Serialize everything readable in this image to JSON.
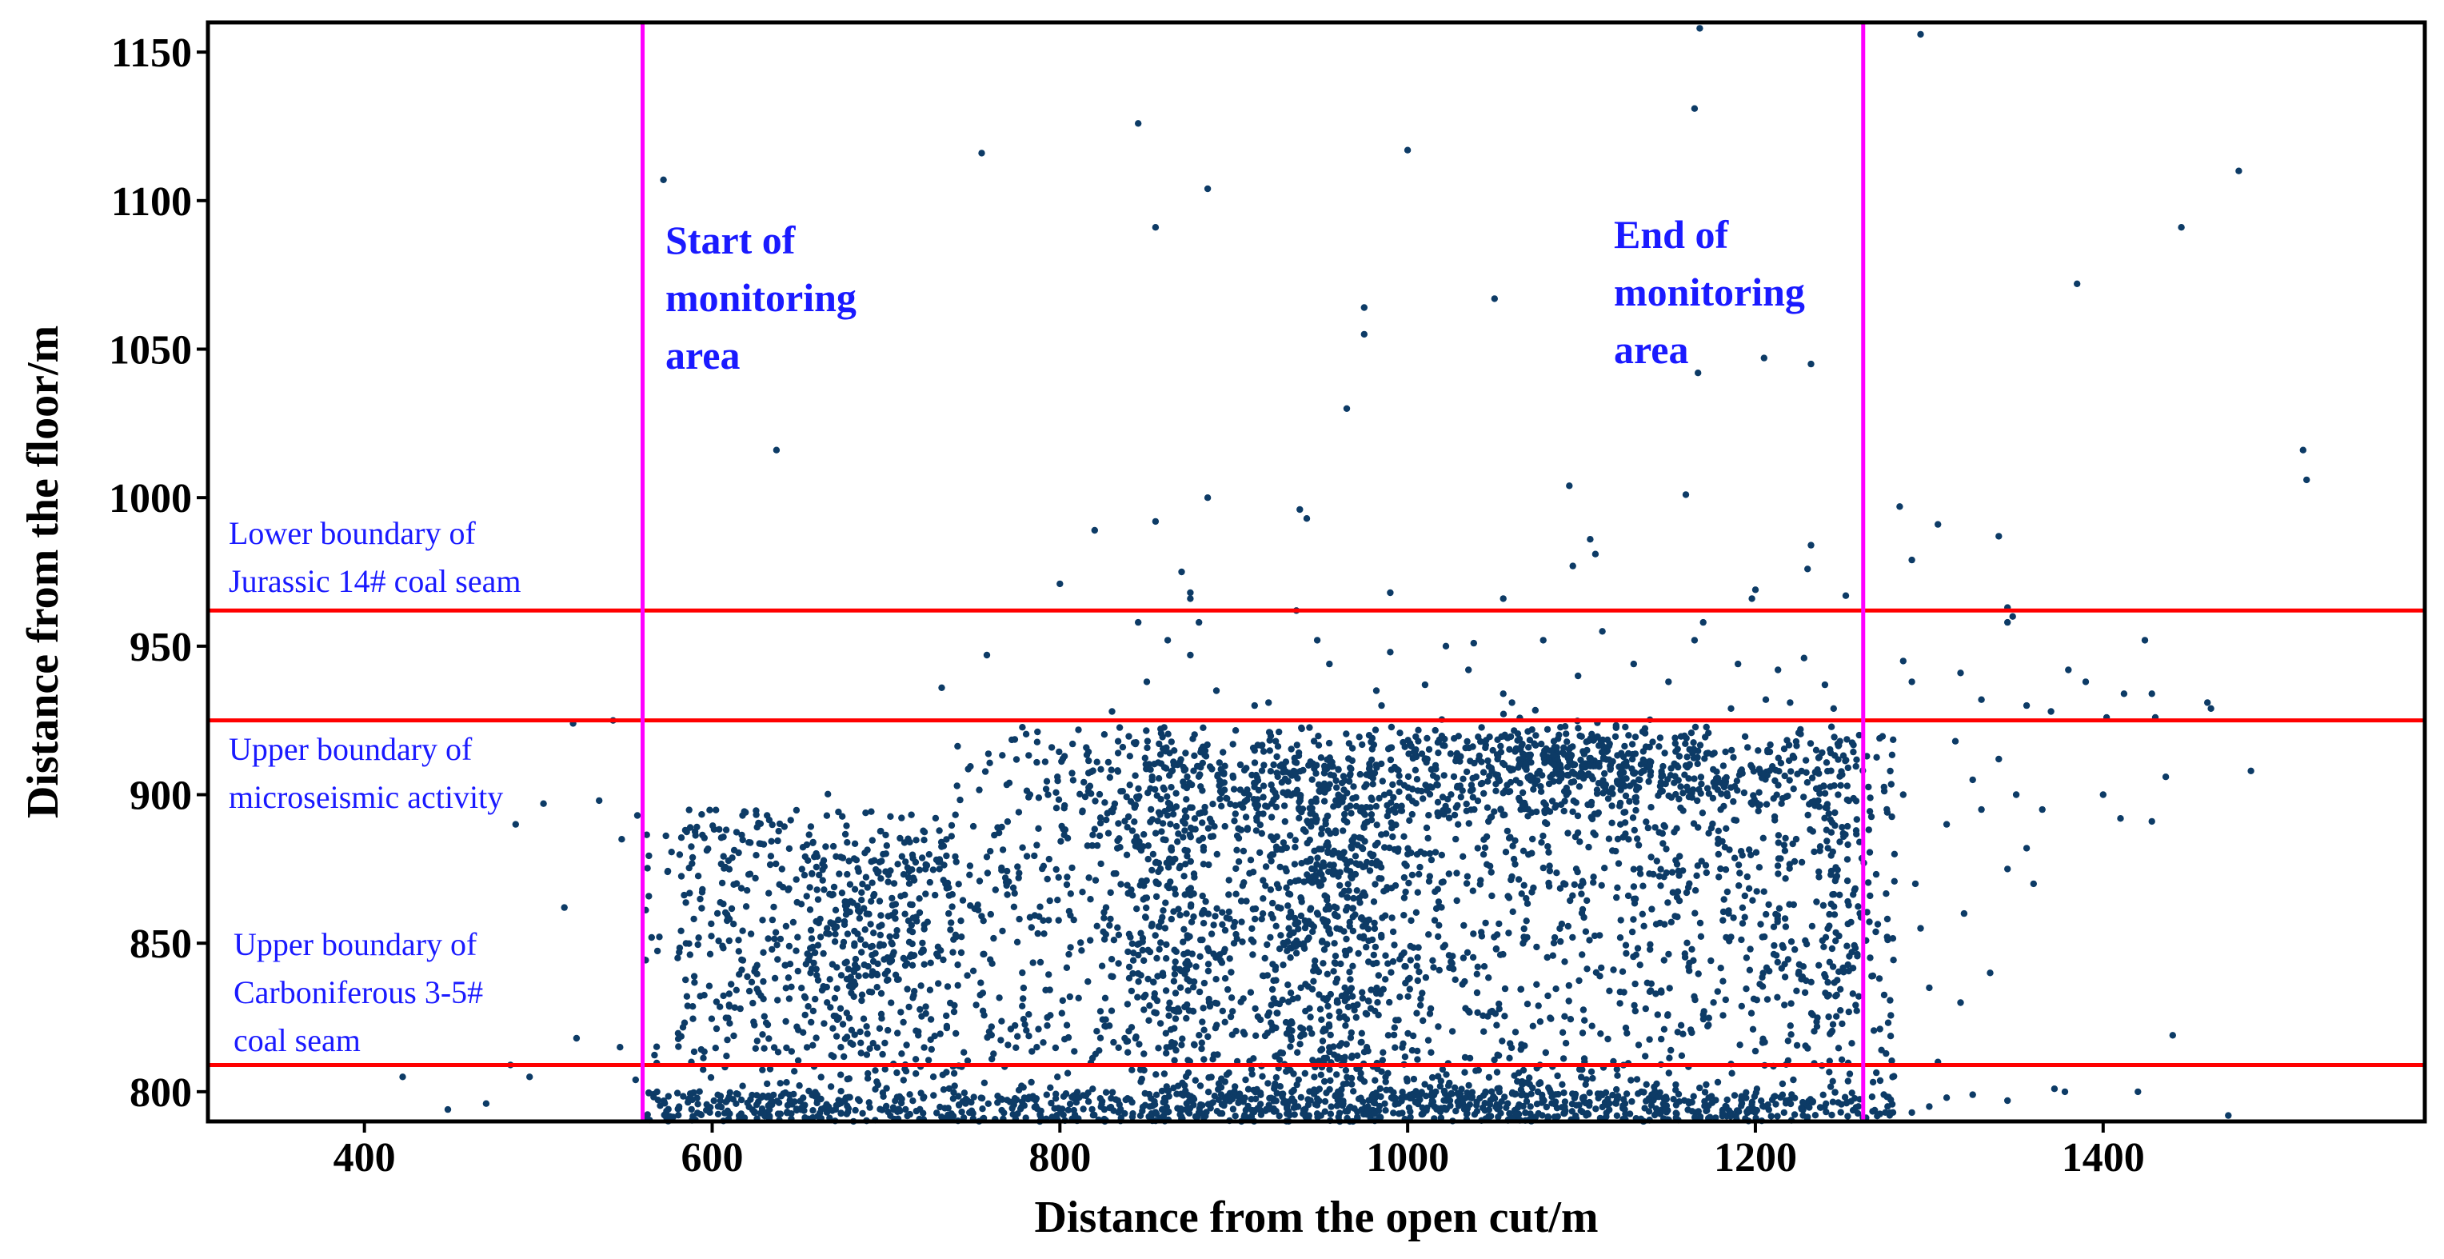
{
  "chart_data": {
    "type": "scatter",
    "xlabel": "Distance from the open cut/m",
    "ylabel": "Distance from the floor/m",
    "xlim": [
      310,
      1585
    ],
    "ylim": [
      790,
      1160
    ],
    "x_ticks": [
      400,
      600,
      800,
      1000,
      1200,
      1400
    ],
    "y_ticks": [
      800,
      850,
      900,
      950,
      1000,
      1050,
      1100,
      1150
    ],
    "point_color": "#0d3b66",
    "vertical_lines": [
      {
        "x": 560,
        "color": "#ff00ff",
        "label": [
          "Start of",
          "monitoring",
          "area"
        ]
      },
      {
        "x": 1262,
        "color": "#ff00ff",
        "label": [
          "End of",
          "monitoring",
          "area"
        ]
      }
    ],
    "horizontal_lines": [
      {
        "y": 962,
        "color": "#ff0000",
        "label": [
          "Lower boundary of",
          "Jurassic 14# coal seam"
        ]
      },
      {
        "y": 925,
        "color": "#ff0000",
        "label": [
          "Upper boundary of",
          "microseismic activity"
        ]
      },
      {
        "y": 809,
        "color": "#ff0000",
        "label": [
          "Upper boundary of",
          "Carboniferous 3-5#",
          "coal seam"
        ]
      }
    ],
    "sparse_points": [
      [
        572,
        1107
      ],
      [
        637,
        1016
      ],
      [
        755,
        1116
      ],
      [
        845,
        1126
      ],
      [
        855,
        1091
      ],
      [
        885,
        1104
      ],
      [
        975,
        1064
      ],
      [
        975,
        1055
      ],
      [
        965,
        1030
      ],
      [
        1000,
        1117
      ],
      [
        1050,
        1067
      ],
      [
        1093,
        1004
      ],
      [
        1160,
        1001
      ],
      [
        1165,
        1131
      ],
      [
        1168,
        1158
      ],
      [
        1205,
        1047
      ],
      [
        1232,
        1045
      ],
      [
        1295,
        1156
      ],
      [
        1385,
        1072
      ],
      [
        1445,
        1091
      ],
      [
        1478,
        1110
      ],
      [
        1515,
        1016
      ],
      [
        1517,
        1006
      ],
      [
        1167,
        1042
      ],
      [
        820,
        989
      ],
      [
        855,
        992
      ],
      [
        885,
        1000
      ],
      [
        938,
        996
      ],
      [
        942,
        993
      ],
      [
        1105,
        986
      ],
      [
        1108,
        981
      ],
      [
        1232,
        984
      ],
      [
        1283,
        997
      ],
      [
        1290,
        979
      ],
      [
        1305,
        991
      ],
      [
        1340,
        987
      ],
      [
        800,
        971
      ],
      [
        870,
        975
      ],
      [
        875,
        968
      ],
      [
        875,
        966
      ],
      [
        990,
        968
      ],
      [
        1055,
        966
      ],
      [
        1095,
        977
      ],
      [
        1200,
        969
      ],
      [
        1198,
        966
      ],
      [
        1252,
        967
      ],
      [
        1230,
        976
      ],
      [
        1345,
        963
      ],
      [
        1348,
        960
      ]
    ],
    "upper_band_points": [
      [
        732,
        936
      ],
      [
        758,
        947
      ],
      [
        830,
        928
      ],
      [
        845,
        958
      ],
      [
        850,
        938
      ],
      [
        862,
        952
      ],
      [
        875,
        947
      ],
      [
        880,
        958
      ],
      [
        890,
        935
      ],
      [
        912,
        930
      ],
      [
        936,
        962
      ],
      [
        948,
        952
      ],
      [
        955,
        944
      ],
      [
        982,
        935
      ],
      [
        990,
        948
      ],
      [
        1010,
        937
      ],
      [
        1022,
        950
      ],
      [
        1038,
        951
      ],
      [
        1055,
        934
      ],
      [
        1078,
        952
      ],
      [
        1098,
        940
      ],
      [
        1112,
        955
      ],
      [
        1130,
        944
      ],
      [
        1150,
        938
      ],
      [
        1170,
        958
      ],
      [
        1165,
        952
      ],
      [
        1190,
        944
      ],
      [
        1206,
        932
      ],
      [
        1213,
        942
      ],
      [
        1228,
        946
      ],
      [
        1240,
        937
      ],
      [
        1285,
        945
      ],
      [
        1290,
        938
      ],
      [
        1318,
        941
      ],
      [
        1345,
        958
      ],
      [
        1380,
        942
      ],
      [
        1390,
        938
      ],
      [
        1412,
        934
      ],
      [
        1424,
        952
      ],
      [
        1428,
        934
      ],
      [
        1460,
        931
      ],
      [
        1462,
        929
      ],
      [
        1330,
        932
      ],
      [
        1356,
        930
      ],
      [
        1370,
        928
      ],
      [
        1402,
        926
      ],
      [
        1430,
        926
      ],
      [
        1220,
        931
      ],
      [
        1245,
        929
      ],
      [
        985,
        930
      ],
      [
        1060,
        931
      ],
      [
        1035,
        942
      ],
      [
        1186,
        929
      ],
      [
        920,
        931
      ]
    ],
    "outer_points": [
      [
        422,
        805
      ],
      [
        448,
        794
      ],
      [
        470,
        796
      ],
      [
        484,
        809
      ],
      [
        487,
        890
      ],
      [
        495,
        805
      ],
      [
        503,
        897
      ],
      [
        515,
        862
      ],
      [
        520,
        924
      ],
      [
        522,
        818
      ],
      [
        535,
        898
      ],
      [
        543,
        925
      ],
      [
        547,
        815
      ],
      [
        548,
        885
      ],
      [
        556,
        804
      ],
      [
        557,
        893
      ],
      [
        1280,
        880
      ],
      [
        1285,
        900
      ],
      [
        1292,
        870
      ],
      [
        1295,
        855
      ],
      [
        1300,
        835
      ],
      [
        1305,
        810
      ],
      [
        1310,
        890
      ],
      [
        1315,
        918
      ],
      [
        1318,
        830
      ],
      [
        1320,
        860
      ],
      [
        1325,
        905
      ],
      [
        1330,
        895
      ],
      [
        1335,
        840
      ],
      [
        1340,
        912
      ],
      [
        1345,
        875
      ],
      [
        1350,
        900
      ],
      [
        1356,
        882
      ],
      [
        1360,
        870
      ],
      [
        1365,
        895
      ],
      [
        1372,
        801
      ],
      [
        1378,
        800
      ],
      [
        1400,
        900
      ],
      [
        1410,
        892
      ],
      [
        1428,
        891
      ],
      [
        1436,
        906
      ],
      [
        1440,
        819
      ],
      [
        1485,
        908
      ],
      [
        1472,
        792
      ],
      [
        1420,
        800
      ],
      [
        1300,
        795
      ],
      [
        1310,
        798
      ],
      [
        1290,
        793
      ],
      [
        1325,
        799
      ],
      [
        1345,
        797
      ]
    ]
  }
}
